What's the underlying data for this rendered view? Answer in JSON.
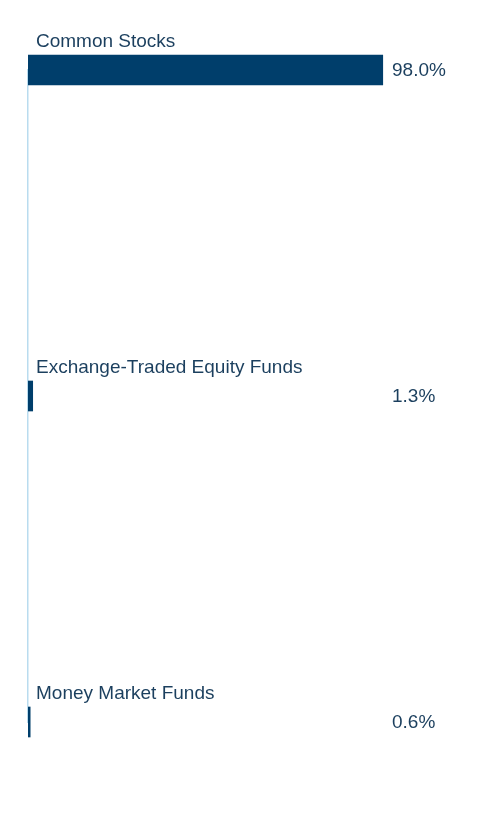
{
  "chart_data": {
    "type": "bar",
    "orientation": "horizontal",
    "categories": [
      "Common Stocks",
      "Exchange-Traded Equity Funds",
      "Money Market Funds"
    ],
    "values": [
      98.0,
      1.3,
      0.6
    ],
    "value_labels": [
      "98.0%",
      "1.3%",
      "0.6%"
    ],
    "data_labels": true,
    "color": "#003e6b",
    "xlim": [
      0,
      100
    ],
    "grid": false,
    "tick_labels": false
  }
}
